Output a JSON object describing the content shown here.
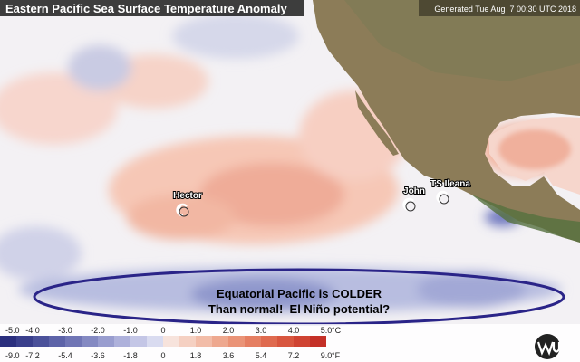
{
  "header": {
    "title": "Eastern Pacific Sea Surface Temperature Anomaly",
    "generated": "Generated Tue Aug  7 00:30 UTC 2018"
  },
  "storms": [
    {
      "label": "Hector"
    },
    {
      "label": "John"
    },
    {
      "label": "TS Ileana"
    }
  ],
  "annotation": {
    "lines": [
      "Equatorial Pacific is COLDER",
      "Than normal!  El Niño potential?"
    ]
  },
  "legend": {
    "celsius": {
      "labels": [
        "-5.0",
        "-4.0",
        "-3.0",
        "-2.0",
        "-1.0",
        "0",
        "1.0",
        "2.0",
        "3.0",
        "4.0",
        "5.0"
      ],
      "unit": "°C"
    },
    "fahrenheit": {
      "labels": [
        "-9.0",
        "-7.2",
        "-5.4",
        "-3.6",
        "-1.8",
        "0",
        "1.8",
        "3.6",
        "5.4",
        "7.2",
        "9.0"
      ],
      "unit": "°F"
    }
  }
}
